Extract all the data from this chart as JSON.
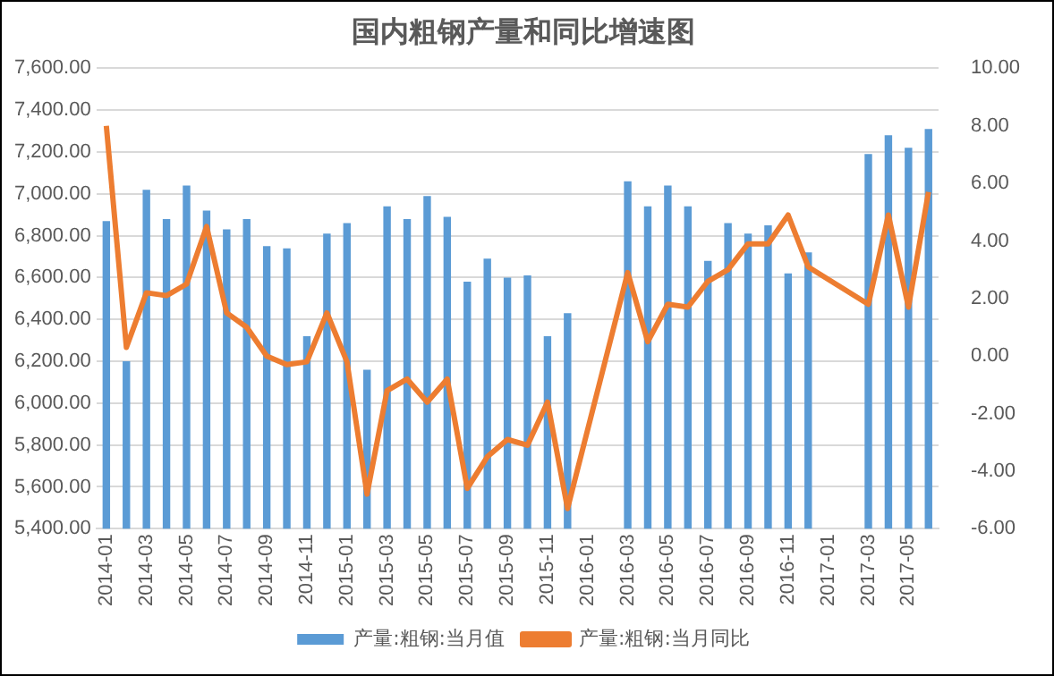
{
  "chart_data": {
    "type": "bar",
    "title": "国内粗钢产量和同比增速图",
    "categories": [
      "2014-01",
      null,
      "2014-03",
      null,
      "2014-05",
      null,
      "2014-07",
      null,
      "2014-09",
      null,
      "2014-11",
      null,
      "2015-01",
      null,
      "2015-03",
      null,
      "2015-05",
      null,
      "2015-07",
      null,
      "2015-09",
      null,
      "2015-11",
      null,
      "2016-01",
      null,
      "2016-03",
      null,
      "2016-05",
      null,
      "2016-07",
      null,
      "2016-09",
      null,
      "2016-11",
      null,
      "2017-01",
      null,
      "2017-03",
      null,
      "2017-05",
      null
    ],
    "series": [
      {
        "name": "产量:粗钢:当月值",
        "color": "#5b9bd5",
        "values": [
          6870,
          6200,
          7020,
          6880,
          7040,
          6920,
          6830,
          6880,
          6750,
          6740,
          6320,
          6810,
          6860,
          6160,
          6940,
          6880,
          6990,
          6890,
          6580,
          6690,
          6600,
          6610,
          6320,
          6430,
          null,
          null,
          7060,
          6940,
          7040,
          6940,
          6680,
          6860,
          6810,
          6850,
          6620,
          6720,
          null,
          null,
          7190,
          7280,
          7220,
          7310
        ]
      },
      {
        "name": "产量:粗钢:当月同比",
        "type": "line",
        "axis": "y2",
        "color": "#ed7d31",
        "values": [
          8.0,
          0.3,
          2.2,
          2.1,
          2.5,
          4.5,
          1.5,
          1.0,
          0.0,
          -0.3,
          -0.2,
          1.5,
          -0.2,
          -4.8,
          -1.2,
          -0.8,
          -1.6,
          -0.8,
          -4.6,
          -3.5,
          -2.9,
          -3.1,
          -1.6,
          -5.3,
          null,
          null,
          2.9,
          0.5,
          1.8,
          1.7,
          2.6,
          3.0,
          3.9,
          3.9,
          4.9,
          3.1,
          null,
          null,
          1.8,
          4.9,
          1.7,
          5.7
        ]
      }
    ],
    "ylim": [
      5400,
      7600
    ],
    "yticks": [
      {
        "value": 5400,
        "label": "5,400.00"
      },
      {
        "value": 5600,
        "label": "5,600.00"
      },
      {
        "value": 5800,
        "label": "5,800.00"
      },
      {
        "value": 6000,
        "label": "6,000.00"
      },
      {
        "value": 6200,
        "label": "6,200.00"
      },
      {
        "value": 6400,
        "label": "6,400.00"
      },
      {
        "value": 6600,
        "label": "6,600.00"
      },
      {
        "value": 6800,
        "label": "6,800.00"
      },
      {
        "value": 7000,
        "label": "7,000.00"
      },
      {
        "value": 7200,
        "label": "7,200.00"
      },
      {
        "value": 7400,
        "label": "7,400.00"
      },
      {
        "value": 7600,
        "label": "7,600.00"
      }
    ],
    "y2lim": [
      -6,
      10
    ],
    "y2ticks": [
      {
        "value": -6,
        "label": "-6.00"
      },
      {
        "value": -4,
        "label": "-4.00"
      },
      {
        "value": -2,
        "label": "-2.00"
      },
      {
        "value": 0,
        "label": "0.00"
      },
      {
        "value": 2,
        "label": "2.00"
      },
      {
        "value": 4,
        "label": "4.00"
      },
      {
        "value": 6,
        "label": "6.00"
      },
      {
        "value": 8,
        "label": "8.00"
      },
      {
        "value": 10,
        "label": "10.00"
      }
    ],
    "grid": "y",
    "legend": "bottom",
    "marker": "none"
  }
}
